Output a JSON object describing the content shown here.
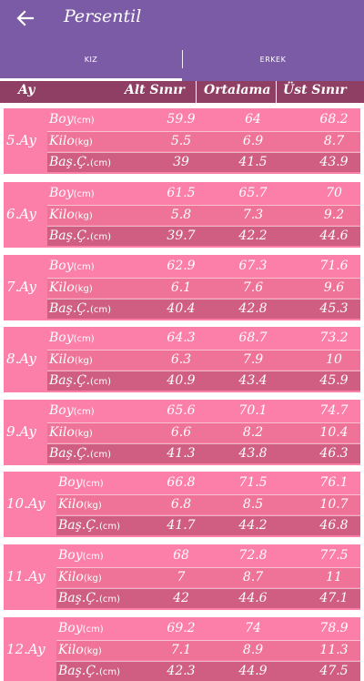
{
  "app": {
    "title": "Persentil",
    "back_icon": "arrow-left-icon"
  },
  "tabs": [
    {
      "label": "KIZ",
      "selected": true
    },
    {
      "label": "ERKEK",
      "selected": false
    }
  ],
  "header": {
    "col_month": "Ay",
    "col_min": "Alt Sınır",
    "col_avg": "Ortalama",
    "col_max": "Üst Sınır"
  },
  "row_labels": {
    "boy": {
      "name": "Boy",
      "unit": "(cm)"
    },
    "kilo": {
      "name": "Kilo",
      "unit": "(kg)"
    },
    "bas": {
      "name": "Baş.Ç.",
      "unit": "(cm)"
    }
  },
  "colors": {
    "appbar": "#7b5aa6",
    "header": "#8f3f63",
    "row_light": "#fb7fa8",
    "row_mid": "#ef7398",
    "row_dark": "#cf5e82"
  },
  "months": [
    {
      "label": "5.Ay",
      "boy": [
        "59.9",
        "64",
        "68.2"
      ],
      "kilo": [
        "5.5",
        "6.9",
        "8.7"
      ],
      "bas": [
        "39",
        "41.5",
        "43.9"
      ]
    },
    {
      "label": "6.Ay",
      "boy": [
        "61.5",
        "65.7",
        "70"
      ],
      "kilo": [
        "5.8",
        "7.3",
        "9.2"
      ],
      "bas": [
        "39.7",
        "42.2",
        "44.6"
      ]
    },
    {
      "label": "7.Ay",
      "boy": [
        "62.9",
        "67.3",
        "71.6"
      ],
      "kilo": [
        "6.1",
        "7.6",
        "9.6"
      ],
      "bas": [
        "40.4",
        "42.8",
        "45.3"
      ]
    },
    {
      "label": "8.Ay",
      "boy": [
        "64.3",
        "68.7",
        "73.2"
      ],
      "kilo": [
        "6.3",
        "7.9",
        "10"
      ],
      "bas": [
        "40.9",
        "43.4",
        "45.9"
      ]
    },
    {
      "label": "9.Ay",
      "boy": [
        "65.6",
        "70.1",
        "74.7"
      ],
      "kilo": [
        "6.6",
        "8.2",
        "10.4"
      ],
      "bas": [
        "41.3",
        "43.8",
        "46.3"
      ]
    },
    {
      "label": "10.Ay",
      "boy": [
        "66.8",
        "71.5",
        "76.1"
      ],
      "kilo": [
        "6.8",
        "8.5",
        "10.7"
      ],
      "bas": [
        "41.7",
        "44.2",
        "46.8"
      ]
    },
    {
      "label": "11.Ay",
      "boy": [
        "68",
        "72.8",
        "77.5"
      ],
      "kilo": [
        "7",
        "8.7",
        "11"
      ],
      "bas": [
        "42",
        "44.6",
        "47.1"
      ]
    },
    {
      "label": "12.Ay",
      "boy": [
        "69.2",
        "74",
        "78.9"
      ],
      "kilo": [
        "7.1",
        "8.9",
        "11.3"
      ],
      "bas": [
        "42.3",
        "44.9",
        "47.5"
      ]
    }
  ]
}
